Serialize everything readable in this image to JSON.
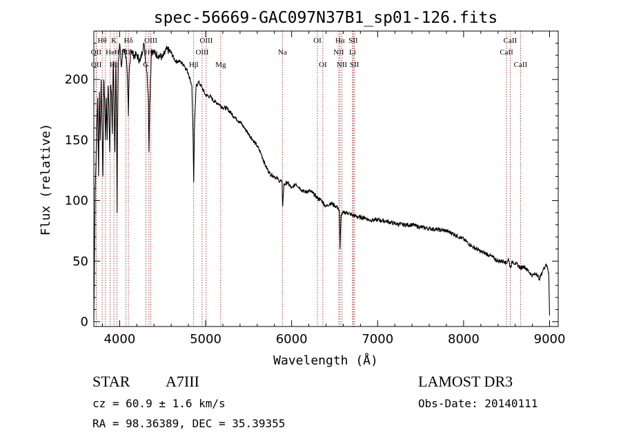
{
  "chart_data": {
    "type": "line",
    "title": "spec-56669-GAC097N37B1_sp01-126.fits",
    "xlabel": "Wavelength (Å)",
    "ylabel": "Flux (relative)",
    "xlim": [
      3700,
      9100
    ],
    "ylim": [
      -4,
      240
    ],
    "xticks": [
      4000,
      5000,
      6000,
      7000,
      8000,
      9000
    ],
    "yticks": [
      0,
      50,
      100,
      150,
      200
    ],
    "series": [
      {
        "name": "spectrum",
        "x": [
          3700,
          3715,
          3725,
          3735,
          3745,
          3755,
          3765,
          3775,
          3785,
          3795,
          3805,
          3815,
          3825,
          3835,
          3845,
          3855,
          3865,
          3875,
          3885,
          3895,
          3905,
          3915,
          3925,
          3935,
          3945,
          3955,
          3965,
          3970,
          3975,
          3985,
          4000,
          4020,
          4040,
          4060,
          4080,
          4095,
          4102,
          4110,
          4130,
          4160,
          4200,
          4240,
          4280,
          4320,
          4335,
          4341,
          4350,
          4370,
          4400,
          4450,
          4500,
          4550,
          4600,
          4650,
          4700,
          4750,
          4800,
          4840,
          4855,
          4861,
          4870,
          4890,
          4920,
          4960,
          5000,
          5050,
          5100,
          5150,
          5200,
          5250,
          5300,
          5350,
          5400,
          5450,
          5500,
          5550,
          5600,
          5650,
          5700,
          5750,
          5800,
          5850,
          5889,
          5895,
          5910,
          5950,
          6000,
          6050,
          6100,
          6150,
          6200,
          6250,
          6300,
          6350,
          6400,
          6450,
          6500,
          6540,
          6555,
          6563,
          6575,
          6600,
          6650,
          6700,
          6750,
          6800,
          6850,
          6900,
          6950,
          7000,
          7100,
          7200,
          7300,
          7400,
          7500,
          7600,
          7700,
          7800,
          7900,
          8000,
          8100,
          8200,
          8300,
          8400,
          8480,
          8498,
          8520,
          8542,
          8570,
          8600,
          8640,
          8662,
          8700,
          8750,
          8800,
          8850,
          8880,
          8920,
          8960,
          8990,
          9000
        ],
        "values": [
          2,
          110,
          130,
          160,
          185,
          120,
          190,
          150,
          200,
          165,
          120,
          200,
          185,
          150,
          185,
          150,
          195,
          178,
          140,
          195,
          190,
          155,
          215,
          180,
          140,
          215,
          160,
          90,
          160,
          215,
          230,
          210,
          225,
          225,
          215,
          190,
          170,
          205,
          225,
          220,
          220,
          215,
          230,
          205,
          180,
          140,
          180,
          225,
          222,
          220,
          218,
          225,
          222,
          215,
          215,
          212,
          205,
          195,
          150,
          115,
          160,
          195,
          198,
          193,
          187,
          186,
          182,
          180,
          177,
          176,
          172,
          168,
          165,
          160,
          155,
          150,
          145,
          138,
          128,
          122,
          120,
          117,
          115,
          95,
          113,
          115,
          110,
          114,
          110,
          107,
          108,
          106,
          102,
          100,
          95,
          98,
          96,
          94,
          90,
          60,
          88,
          90,
          90,
          88,
          87,
          86,
          86,
          84,
          84,
          84,
          83,
          81,
          80,
          80,
          78,
          77,
          76,
          75,
          72,
          68,
          62,
          58,
          55,
          50,
          50,
          48,
          52,
          45,
          50,
          48,
          46,
          44,
          46,
          42,
          38,
          40,
          35,
          42,
          48,
          40,
          5
        ]
      }
    ],
    "line_labels": [
      {
        "text": "Hθ",
        "x": 3797,
        "row": 1
      },
      {
        "text": "K",
        "x": 3934,
        "row": 1
      },
      {
        "text": "Hδ",
        "x": 4102,
        "row": 1
      },
      {
        "text": "OIII",
        "x": 4363,
        "row": 1
      },
      {
        "text": "OIII",
        "x": 5007,
        "row": 1
      },
      {
        "text": "OI",
        "x": 6300,
        "row": 1
      },
      {
        "text": "Hα",
        "x": 6563,
        "row": 1
      },
      {
        "text": "SII",
        "x": 6717,
        "row": 1
      },
      {
        "text": "CaII",
        "x": 8542,
        "row": 1
      },
      {
        "text": "OII",
        "x": 3727,
        "row": 2
      },
      {
        "text": "He",
        "x": 3889,
        "row": 2
      },
      {
        "text": "H",
        "x": 3970,
        "row": 2
      },
      {
        "text": "SII",
        "x": 4072,
        "row": 2
      },
      {
        "text": "Hγ",
        "x": 4341,
        "row": 2
      },
      {
        "text": "OIII",
        "x": 4959,
        "row": 2
      },
      {
        "text": "Na",
        "x": 5893,
        "row": 2
      },
      {
        "text": "NII",
        "x": 6548,
        "row": 2
      },
      {
        "text": "Li",
        "x": 6708,
        "row": 2
      },
      {
        "text": "CaII",
        "x": 8498,
        "row": 2
      },
      {
        "text": "OII",
        "x": 3729,
        "row": 3
      },
      {
        "text": "Hε",
        "x": 3935,
        "row": 3
      },
      {
        "text": "G",
        "x": 4305,
        "row": 3
      },
      {
        "text": "Hβ",
        "x": 4861,
        "row": 3
      },
      {
        "text": "Mg",
        "x": 5175,
        "row": 3
      },
      {
        "text": "OI",
        "x": 6363,
        "row": 3
      },
      {
        "text": "NII",
        "x": 6584,
        "row": 3
      },
      {
        "text": "SII",
        "x": 6731,
        "row": 3
      },
      {
        "text": "CaII",
        "x": 8662,
        "row": 3
      }
    ],
    "line_markers": [
      3727,
      3729,
      3797,
      3835,
      3889,
      3934,
      3970,
      4072,
      4102,
      4305,
      4341,
      4363,
      4861,
      4959,
      5007,
      5175,
      5893,
      6300,
      6363,
      6548,
      6563,
      6584,
      6708,
      6717,
      6731,
      8498,
      8542,
      8662
    ],
    "colors": {
      "axis": "#000000",
      "spectrum": "#000000",
      "markers": "#b22222"
    }
  },
  "footer": {
    "class_label": "STAR",
    "subclass": "A7III",
    "survey": "LAMOST DR3",
    "redshift": "cz = 60.9 ± 1.6 km/s",
    "obs_date": "Obs-Date: 20140111",
    "coords": "RA =  98.36389, DEC =  35.39355"
  }
}
